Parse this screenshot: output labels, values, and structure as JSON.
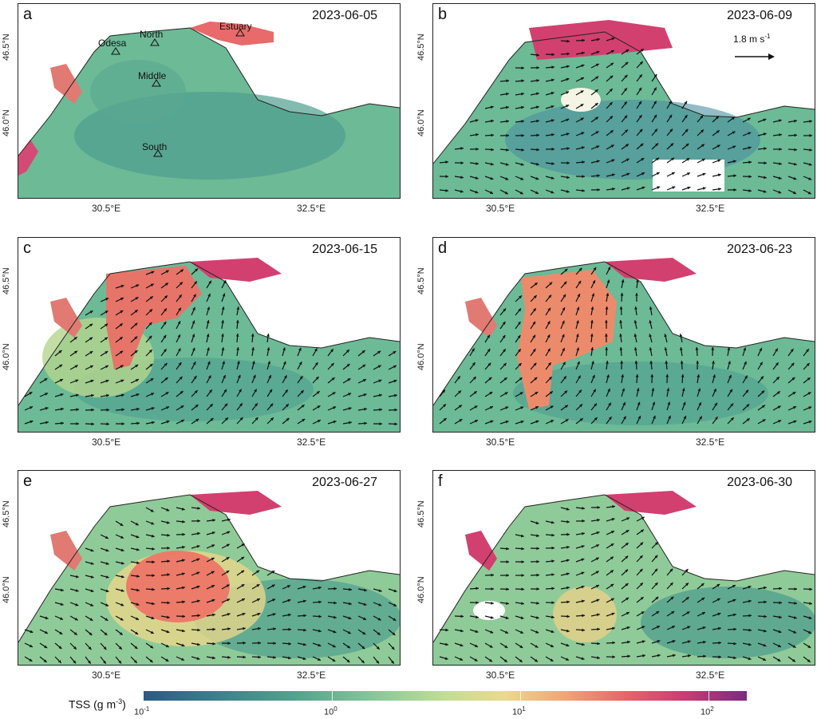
{
  "figure": {
    "x_ticks": [
      "30.5°E",
      "32.5°E"
    ],
    "y_ticks": [
      "46.5°N",
      "46.0°N"
    ],
    "panels": [
      {
        "letter": "a",
        "date": "2023-06-05",
        "has_vectors": false
      },
      {
        "letter": "b",
        "date": "2023-06-09",
        "has_vectors": true
      },
      {
        "letter": "c",
        "date": "2023-06-15",
        "has_vectors": true
      },
      {
        "letter": "d",
        "date": "2023-06-23",
        "has_vectors": true
      },
      {
        "letter": "e",
        "date": "2023-06-27",
        "has_vectors": true
      },
      {
        "letter": "f",
        "date": "2023-06-30",
        "has_vectors": true
      }
    ],
    "sites": [
      "Odesa",
      "North",
      "Estuary",
      "Middle",
      "South"
    ],
    "scale_bar": {
      "value": "1.8",
      "unit": "m s",
      "exponent": "-1"
    },
    "colorbar": {
      "title": "TSS (g m",
      "title_exponent": "-3",
      "title_close": ")",
      "tick_base": "10",
      "tick_exponents": [
        "-1",
        "0",
        "1",
        "2"
      ],
      "palette": [
        "#2b5a84",
        "#52a28d",
        "#c2dd95",
        "#f2a377",
        "#c93b73",
        "#7a2a82"
      ]
    }
  }
}
